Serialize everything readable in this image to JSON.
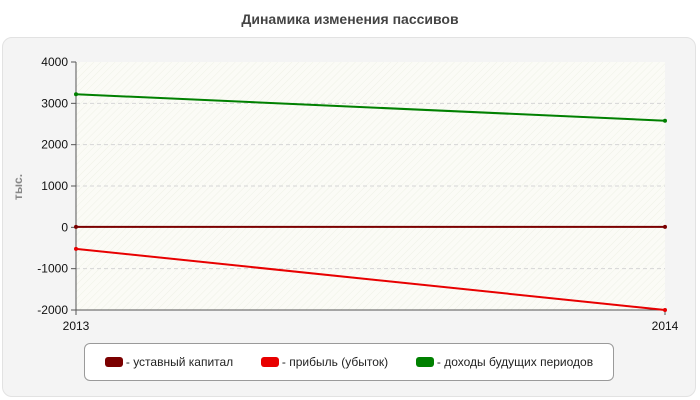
{
  "chart_data": {
    "type": "line",
    "title": "Динамика изменения пассивов",
    "ylabel": "тыс.",
    "xlabel": "",
    "x": [
      "2013",
      "2014"
    ],
    "ylim": [
      -2000,
      4000
    ],
    "yticks": [
      4000,
      3000,
      2000,
      1000,
      0,
      -1000,
      -2000
    ],
    "grid": true,
    "legend_position": "bottom",
    "series": [
      {
        "name": "уставный капитал",
        "color": "#7b0000",
        "values": [
          10,
          10
        ]
      },
      {
        "name": "прибыль (убыток)",
        "color": "#e80000",
        "values": [
          -520,
          -2000
        ]
      },
      {
        "name": "доходы будущих периодов",
        "color": "#008000",
        "values": [
          3220,
          2580
        ]
      }
    ]
  },
  "legend": {
    "separator": " - "
  }
}
